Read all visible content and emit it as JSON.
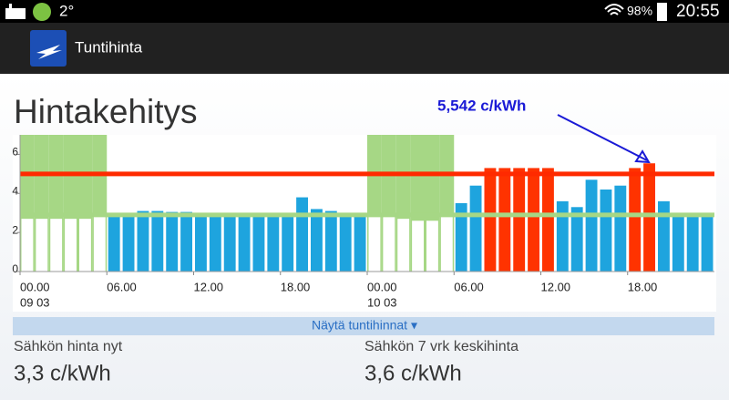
{
  "status_bar": {
    "temperature": "2°",
    "battery": "98%",
    "time": "20:55"
  },
  "app_bar": {
    "title": "Tuntihinta"
  },
  "page_title": "Hintakehitys",
  "chart_data": {
    "type": "bar",
    "categories": [
      "00.00",
      null,
      null,
      null,
      null,
      null,
      "06.00",
      null,
      null,
      null,
      null,
      null,
      "12.00",
      null,
      null,
      null,
      null,
      null,
      "18.00",
      null,
      null,
      null,
      null,
      null,
      "00.00",
      null,
      null,
      null,
      null,
      null,
      "06.00",
      null,
      null,
      null,
      null,
      null,
      "12.00",
      null,
      null,
      null,
      null,
      null,
      "18.00",
      null,
      null,
      null,
      null,
      null
    ],
    "dates": [
      "09 03",
      null,
      null,
      null,
      null,
      null,
      null,
      null,
      null,
      null,
      null,
      null,
      null,
      null,
      null,
      null,
      null,
      null,
      null,
      null,
      null,
      null,
      null,
      null,
      "10 03",
      null,
      null,
      null,
      null,
      null,
      null,
      null,
      null,
      null,
      null,
      null,
      null,
      null,
      null,
      null,
      null,
      null,
      null,
      null,
      null,
      null,
      null,
      null
    ],
    "values": [
      2.7,
      2.7,
      2.7,
      2.7,
      2.7,
      2.8,
      2.9,
      3.0,
      3.1,
      3.1,
      3.05,
      3.05,
      3.0,
      3.0,
      3.0,
      2.95,
      2.95,
      3.0,
      3.0,
      3.8,
      3.2,
      3.1,
      3.0,
      2.9,
      2.9,
      2.8,
      2.7,
      2.6,
      2.6,
      2.8,
      3.5,
      4.4,
      5.3,
      5.3,
      5.3,
      5.3,
      5.3,
      3.6,
      3.3,
      4.7,
      4.2,
      4.4,
      5.3,
      5.542,
      3.6,
      2.9,
      2.8,
      2.8
    ],
    "bar_colors": [
      "#ffffff",
      "#ffffff",
      "#ffffff",
      "#ffffff",
      "#ffffff",
      "#ffffff",
      "#1ea4de",
      "#1ea4de",
      "#1ea4de",
      "#1ea4de",
      "#1ea4de",
      "#1ea4de",
      "#1ea4de",
      "#1ea4de",
      "#1ea4de",
      "#1ea4de",
      "#1ea4de",
      "#1ea4de",
      "#1ea4de",
      "#1ea4de",
      "#1ea4de",
      "#1ea4de",
      "#1ea4de",
      "#1ea4de",
      "#ffffff",
      "#ffffff",
      "#ffffff",
      "#ffffff",
      "#ffffff",
      "#ffffff",
      "#1ea4de",
      "#1ea4de",
      "#ff3300",
      "#ff3300",
      "#ff3300",
      "#ff3300",
      "#ff3300",
      "#1ea4de",
      "#1ea4de",
      "#1ea4de",
      "#1ea4de",
      "#1ea4de",
      "#ff3300",
      "#ff3300",
      "#1ea4de",
      "#1ea4de",
      "#1ea4de",
      "#1ea4de"
    ],
    "low_background": "#a6d785",
    "ylim": [
      0,
      7
    ],
    "yticks": [
      0,
      2,
      4,
      6
    ],
    "reference_lines": [
      {
        "value": 5.0,
        "color": "#ff2a00"
      },
      {
        "value": 2.9,
        "color": "#a6d785"
      }
    ],
    "annotation": "5,542 c/kWh"
  },
  "toggle": "Näytä tuntihinnat ▾",
  "stats": [
    {
      "label": "Sähkön hinta nyt",
      "value": "3,3 c/kWh"
    },
    {
      "label": "Sähkön 7 vrk keskihinta",
      "value": "3,6 c/kWh"
    }
  ]
}
